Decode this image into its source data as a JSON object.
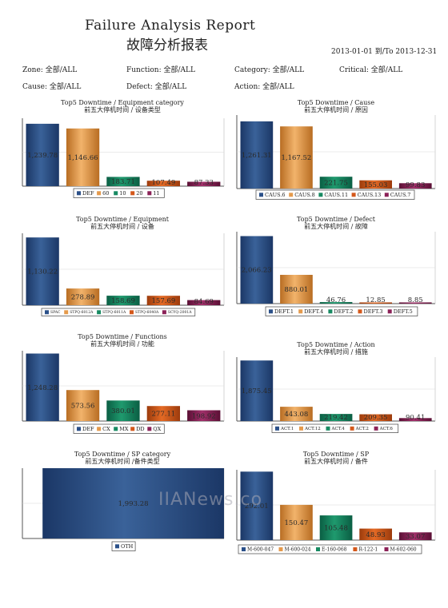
{
  "report": {
    "title_en": "Failure Analysis Report",
    "title_zh": "故障分析报表",
    "date_range": "2013-01-01 到/To 2013-12-31"
  },
  "filters": [
    {
      "text": "Zone: 全部/ALL"
    },
    {
      "text": "Function: 全部/ALL"
    },
    {
      "text": "Category: 全部/ALL"
    },
    {
      "text": "Critical: 全部/ALL"
    },
    {
      "text": "Cause: 全部/ALL"
    },
    {
      "text": "Defect: 全部/ALL"
    },
    {
      "text": "Action: 全部/ALL"
    }
  ],
  "watermark": "IIANews.co",
  "chart_data": [
    {
      "type": "bar",
      "title": "Top5 Downtime / Equipment category",
      "subtitle": "前五大停机时间 / 设备类型",
      "categories": [
        "DEF",
        "60",
        "10",
        "20",
        "11"
      ],
      "values": [
        1239.78,
        1146.66,
        183.71,
        107.49,
        87.33
      ],
      "value_labels": [
        "1,239.78",
        "1,146.66",
        "183.71",
        "107.49",
        "87.33"
      ],
      "ylim": [
        0,
        1350
      ]
    },
    {
      "type": "bar",
      "title": "Top5 Downtime / Cause",
      "subtitle": "前五大停机时间 / 原因",
      "categories": [
        "CAUS.6",
        "CAUS.8",
        "CAUS.11",
        "CAUS.13",
        "CAUS.7"
      ],
      "values": [
        1261.31,
        1167.52,
        221.75,
        155.03,
        99.83
      ],
      "value_labels": [
        "1,261.31",
        "1,167.52",
        "221.75",
        "155.03",
        "99.83"
      ],
      "ylim": [
        0,
        1380
      ]
    },
    {
      "type": "bar",
      "title": "Top5 Downtime / Equipment",
      "subtitle": "前五大停机时间 / 设备",
      "categories": [
        "SPAC",
        "STPQ-6012A",
        "STPQ-6011A",
        "STPQ-6040A",
        "SCYQ-2001A"
      ],
      "values": [
        1130.22,
        278.89,
        158.69,
        157.69,
        84.69
      ],
      "value_labels": [
        "1,130.22",
        "278.89",
        "158.69",
        "157.69",
        "84.69"
      ],
      "ylim": [
        0,
        1200
      ]
    },
    {
      "type": "bar",
      "title": "Top5 Downtime / Defect",
      "subtitle": "前五大停机时间 / 故障",
      "categories": [
        "DEFT.1",
        "DEFT.4",
        "DEFT.2",
        "DEFT.3",
        "DEFT.5"
      ],
      "values": [
        2066.23,
        880.01,
        46.76,
        12.85,
        8.85
      ],
      "value_labels": [
        "2,066.23",
        "880.01",
        "46.76",
        "12.85",
        "8.85"
      ],
      "ylim": [
        0,
        2200
      ]
    },
    {
      "type": "bar",
      "title": "Top5 Downtime / Functions",
      "subtitle": "前五大停机时间 / 功能",
      "categories": [
        "DEF",
        "CX",
        "MX",
        "DD",
        "QX"
      ],
      "values": [
        1248.28,
        573.56,
        380.01,
        277.11,
        198.92
      ],
      "value_labels": [
        "1,248.28",
        "573.56",
        "380.01",
        "277.11",
        "198.92"
      ],
      "ylim": [
        0,
        1300
      ]
    },
    {
      "type": "bar",
      "title": "Top5 Downtime / Action",
      "subtitle": "前五大停机时间 / 措施",
      "categories": [
        "ACT.1",
        "ACT.12",
        "ACT.4",
        "ACT.2",
        "ACT.6"
      ],
      "values": [
        1875.45,
        443.08,
        219.42,
        209.35,
        90.41
      ],
      "value_labels": [
        "1,875.45",
        "443.08",
        "219.42",
        "209.35",
        "90.41"
      ],
      "ylim": [
        0,
        1980
      ]
    },
    {
      "type": "bar",
      "title": "Top5 Downtime / SP category",
      "subtitle": "前五大停机时间 /备件类型",
      "categories": [
        "OTH"
      ],
      "values": [
        1993.28
      ],
      "value_labels": [
        "1,993.28"
      ],
      "ylim": [
        0,
        1993.28
      ]
    },
    {
      "type": "bar",
      "title": "Top5 Downtime / SP",
      "subtitle": "前五大停机时间 / 备件",
      "categories": [
        "M-600-047",
        "M-600-024",
        "E-160-068",
        "R-122-1",
        "M-602-060"
      ],
      "values": [
        292.01,
        150.47,
        105.48,
        48.93,
        33.07
      ],
      "value_labels": [
        "292.01",
        "150.47",
        "105.48",
        "48.93",
        "33.07"
      ],
      "ylim": [
        0,
        300
      ]
    }
  ]
}
